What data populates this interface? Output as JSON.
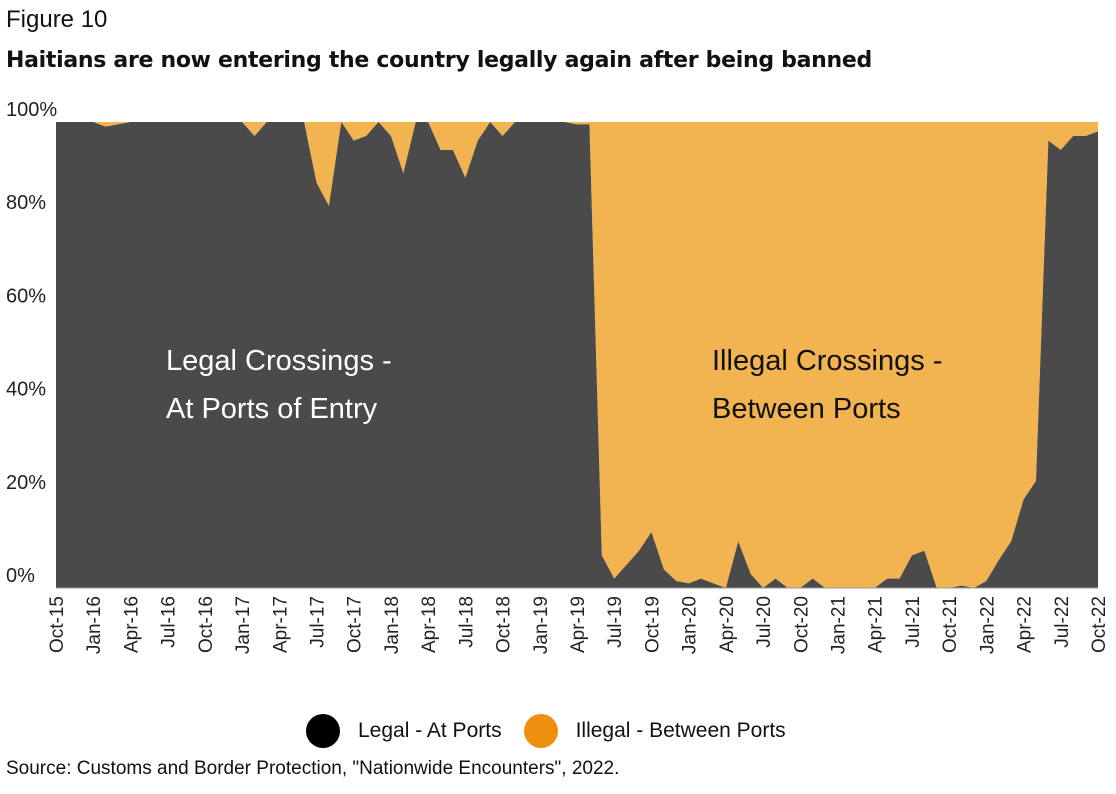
{
  "figure_label": "Figure 10",
  "source": "Source: Customs and Border Protection, \"Nationwide Encounters\", 2022.",
  "colors": {
    "legal": "#4a4a4a",
    "illegal": "#f2b451",
    "legend_legal": "#000000",
    "legend_illegal": "#ef8f0f"
  },
  "chart_data": {
    "type": "area",
    "stacked": true,
    "percent": true,
    "title": "Haitians are now entering the country legally again after being banned",
    "xlabel": "",
    "ylabel": "",
    "ylim": [
      0,
      100
    ],
    "y_ticks": [
      "0%",
      "20%",
      "40%",
      "60%",
      "80%",
      "100%"
    ],
    "x_tick_labels": [
      "Oct-15",
      "Jan-16",
      "Apr-16",
      "Jul-16",
      "Oct-16",
      "Jan-17",
      "Apr-17",
      "Jul-17",
      "Oct-17",
      "Jan-18",
      "Apr-18",
      "Jul-18",
      "Oct-18",
      "Jan-19",
      "Apr-19",
      "Jul-19",
      "Oct-19",
      "Jan-20",
      "Apr-20",
      "Jul-20",
      "Oct-20",
      "Jan-21",
      "Apr-21",
      "Jul-21",
      "Oct-21",
      "Jan-22",
      "Apr-22",
      "Jul-22",
      "Oct-22"
    ],
    "months": [
      "Oct-15",
      "Nov-15",
      "Dec-15",
      "Jan-16",
      "Feb-16",
      "Mar-16",
      "Apr-16",
      "May-16",
      "Jun-16",
      "Jul-16",
      "Aug-16",
      "Sep-16",
      "Oct-16",
      "Nov-16",
      "Dec-16",
      "Jan-17",
      "Feb-17",
      "Mar-17",
      "Apr-17",
      "May-17",
      "Jun-17",
      "Jul-17",
      "Aug-17",
      "Sep-17",
      "Oct-17",
      "Nov-17",
      "Dec-17",
      "Jan-18",
      "Feb-18",
      "Mar-18",
      "Apr-18",
      "May-18",
      "Jun-18",
      "Jul-18",
      "Aug-18",
      "Sep-18",
      "Oct-18",
      "Nov-18",
      "Dec-18",
      "Jan-19",
      "Feb-19",
      "Mar-19",
      "Apr-19",
      "May-19",
      "Jun-19",
      "Jul-19",
      "Aug-19",
      "Sep-19",
      "Oct-19",
      "Nov-19",
      "Dec-19",
      "Jan-20",
      "Feb-20",
      "Mar-20",
      "Apr-20",
      "May-20",
      "Jun-20",
      "Jul-20",
      "Aug-20",
      "Sep-20",
      "Oct-20",
      "Nov-20",
      "Dec-20",
      "Jan-21",
      "Feb-21",
      "Mar-21",
      "Apr-21",
      "May-21",
      "Jun-21",
      "Jul-21",
      "Aug-21",
      "Sep-21",
      "Oct-21",
      "Nov-21",
      "Dec-21",
      "Jan-22",
      "Feb-22",
      "Mar-22",
      "Apr-22",
      "May-22",
      "Jun-22",
      "Jul-22",
      "Aug-22",
      "Sep-22",
      "Oct-22"
    ],
    "series": [
      {
        "name": "Legal - At Ports",
        "values": [
          100,
          100,
          100,
          100,
          99,
          99.5,
          100,
          100,
          100,
          100,
          100,
          100,
          100,
          100,
          100,
          100,
          97,
          100,
          100,
          100,
          100,
          87,
          82,
          100,
          96,
          97,
          100,
          97,
          89,
          100,
          100,
          94,
          94,
          88,
          96,
          100,
          97,
          100,
          100,
          100,
          100,
          100,
          99.5,
          99.5,
          7,
          2,
          5,
          8,
          12,
          4,
          1.5,
          1,
          2,
          1,
          0,
          10,
          3,
          0,
          2,
          0,
          0,
          2,
          0,
          0,
          0,
          0,
          0,
          2,
          2,
          7,
          8,
          0,
          0,
          0.5,
          0,
          1.5,
          6,
          10,
          19,
          23,
          96,
          94,
          97,
          97,
          98
        ]
      },
      {
        "name": "Illegal - Between Ports",
        "values": [
          0,
          0,
          0,
          0,
          1,
          0.5,
          0,
          0,
          0,
          0,
          0,
          0,
          0,
          0,
          0,
          0,
          3,
          0,
          0,
          0,
          0,
          13,
          18,
          0,
          4,
          3,
          0,
          3,
          11,
          0,
          0,
          6,
          6,
          12,
          4,
          0,
          3,
          0,
          0,
          0,
          0,
          0,
          0.5,
          0.5,
          93,
          98,
          95,
          92,
          88,
          96,
          98.5,
          99,
          98,
          99,
          100,
          90,
          97,
          100,
          98,
          100,
          100,
          98,
          100,
          100,
          100,
          100,
          100,
          98,
          98,
          93,
          92,
          100,
          100,
          99.5,
          100,
          98.5,
          94,
          90,
          81,
          77,
          4,
          6,
          3,
          3,
          2
        ]
      }
    ],
    "annotations": [
      {
        "lines": [
          "Legal Crossings -",
          "At Ports of Entry"
        ]
      },
      {
        "lines": [
          "Illegal Crossings -",
          "Between Ports"
        ]
      }
    ],
    "legend": [
      "Legal - At Ports",
      "Illegal - Between Ports"
    ],
    "legend_position": "bottom"
  }
}
